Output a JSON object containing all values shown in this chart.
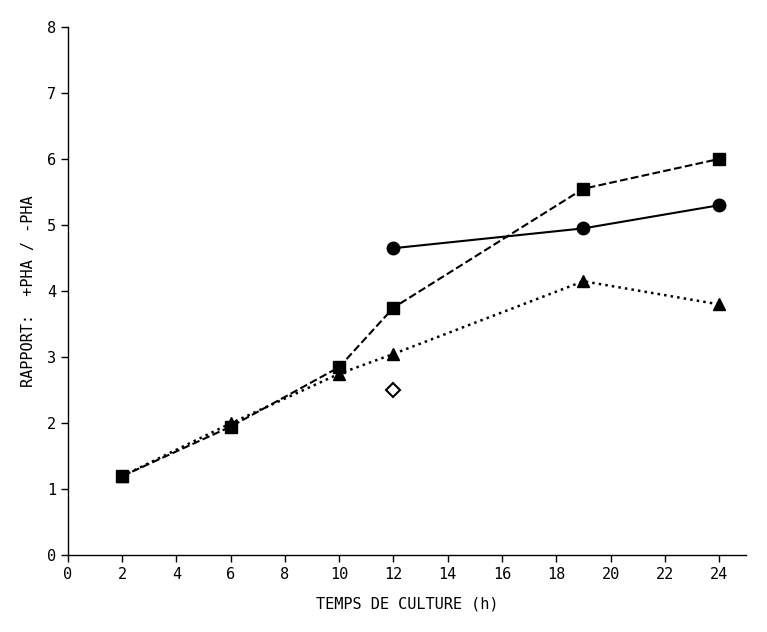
{
  "series": [
    {
      "label": "squares_dashed",
      "x": [
        2,
        6,
        10,
        12,
        19,
        24
      ],
      "y": [
        1.2,
        1.95,
        2.85,
        3.75,
        5.55,
        6.0
      ],
      "marker": "s",
      "linestyle": "--",
      "color": "#000000",
      "markersize": 8,
      "linewidth": 1.5,
      "zorder": 3
    },
    {
      "label": "circles_solid",
      "x": [
        12,
        19,
        24
      ],
      "y": [
        4.65,
        4.95,
        5.3
      ],
      "marker": "o",
      "linestyle": "-",
      "color": "#000000",
      "markersize": 9,
      "linewidth": 1.5,
      "zorder": 3
    },
    {
      "label": "triangles_dotted",
      "x": [
        2,
        6,
        10,
        12,
        19,
        24
      ],
      "y": [
        1.2,
        2.0,
        2.75,
        3.05,
        4.15,
        3.8
      ],
      "marker": "^",
      "linestyle": ":",
      "color": "#000000",
      "markersize": 8,
      "linewidth": 1.8,
      "zorder": 3
    }
  ],
  "diamond_point": {
    "x": [
      12
    ],
    "y": [
      2.5
    ],
    "marker": "D",
    "color": "#000000",
    "markersize": 7
  },
  "xlim": [
    0,
    25
  ],
  "ylim": [
    0,
    8
  ],
  "xticks": [
    0,
    2,
    4,
    6,
    8,
    10,
    12,
    14,
    16,
    18,
    20,
    22,
    24
  ],
  "yticks": [
    0,
    1,
    2,
    3,
    4,
    5,
    6,
    7,
    8
  ],
  "xlabel": "TEMPS DE CULTURE (h)",
  "ylabel": "RAPPORT:  +PHA / -PHA",
  "background_color": "#ffffff",
  "figure_width": 7.67,
  "figure_height": 6.32,
  "dpi": 100,
  "tick_fontsize": 11,
  "label_fontsize": 11,
  "axis_linewidth": 1.0
}
